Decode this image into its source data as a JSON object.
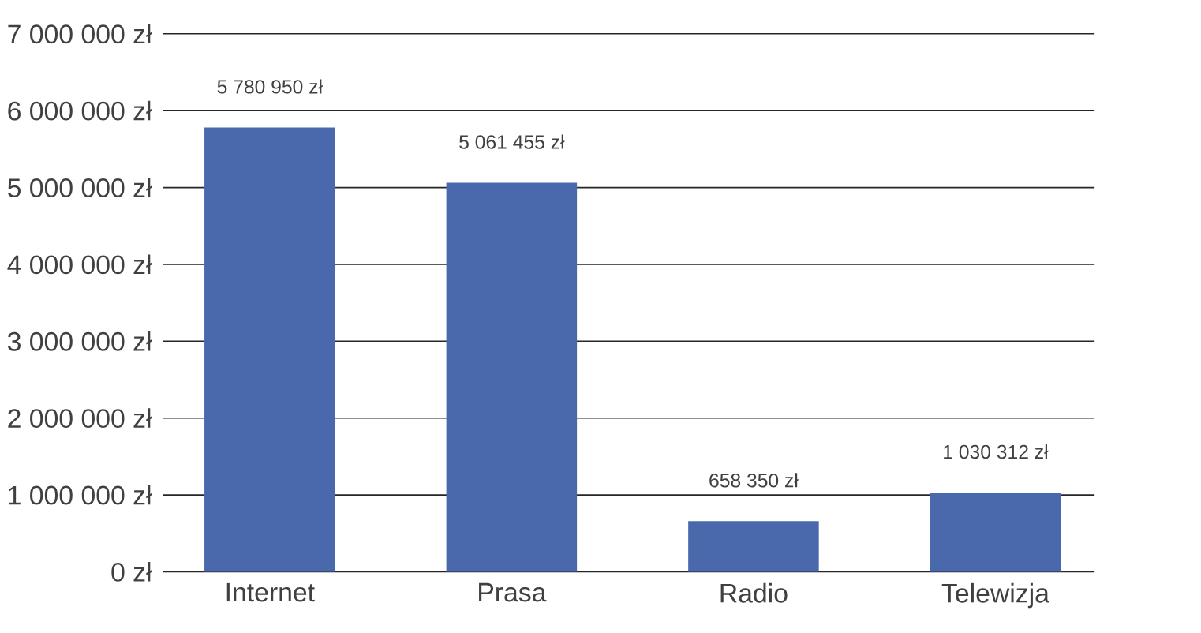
{
  "chart_data": {
    "type": "bar",
    "categories": [
      "Internet",
      "Prasa",
      "Radio",
      "Telewizja"
    ],
    "values": [
      5780950,
      5061455,
      658350,
      1030312
    ],
    "value_labels": [
      "5 780 950 zł",
      "5 061 455 zł",
      "658 350 zł",
      "1 030 312 zł"
    ],
    "color": "#4a69ad",
    "ylim": [
      0,
      7000000
    ],
    "yticks": [
      {
        "value": 0,
        "label": "0 zł"
      },
      {
        "value": 1000000,
        "label": "1 000 000 zł"
      },
      {
        "value": 2000000,
        "label": "2 000 000 zł"
      },
      {
        "value": 3000000,
        "label": "3 000 000 zł"
      },
      {
        "value": 4000000,
        "label": "4 000 000 zł"
      },
      {
        "value": 5000000,
        "label": "5 000 000 zł"
      },
      {
        "value": 6000000,
        "label": "6 000 000 zł"
      },
      {
        "value": 7000000,
        "label": "7 000 000 zł"
      }
    ],
    "grid": "y"
  }
}
